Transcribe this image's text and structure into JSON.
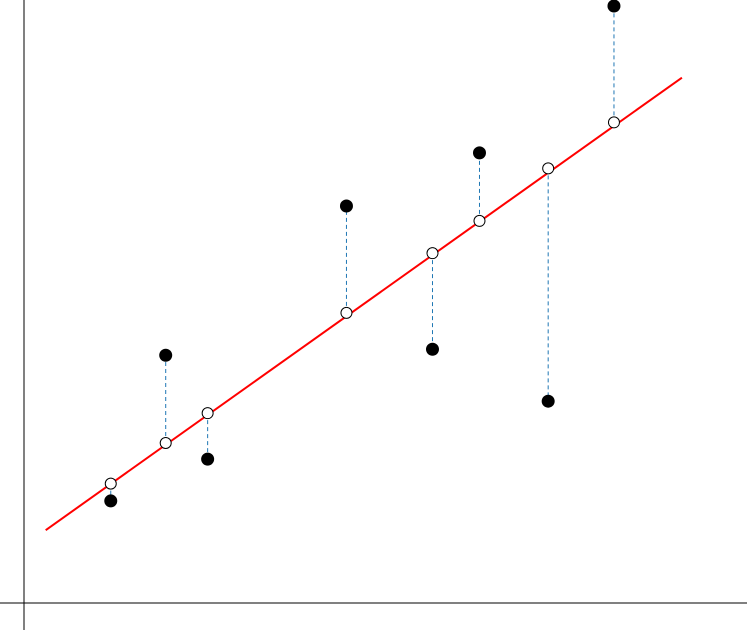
{
  "chart_data": {
    "type": "scatter",
    "title": "",
    "xlabel": "",
    "ylabel": "",
    "xlim": [
      0,
      100
    ],
    "ylim": [
      0,
      100
    ],
    "grid": false,
    "legend": "none",
    "regression_line": {
      "x": [
        3,
        91
      ],
      "y": [
        12.2,
        88.0
      ]
    },
    "points": [
      {
        "x": 12,
        "y": 17.1,
        "fitted": 20.0
      },
      {
        "x": 19.6,
        "y": 41.5,
        "fitted": 26.8
      },
      {
        "x": 25.4,
        "y": 24.1,
        "fitted": 31.8
      },
      {
        "x": 44.6,
        "y": 66.5,
        "fitted": 48.6
      },
      {
        "x": 56.5,
        "y": 42.5,
        "fitted": 58.6
      },
      {
        "x": 63,
        "y": 75.4,
        "fitted": 64.0
      },
      {
        "x": 72.5,
        "y": 33.8,
        "fitted": 72.8
      },
      {
        "x": 81.6,
        "y": 100.0,
        "fitted": 80.5
      }
    ],
    "colors": {
      "regression_line": "#ff0000",
      "residual": "#1f77b4",
      "observed_point": "#000000",
      "fitted_point": "#ffffff"
    }
  }
}
